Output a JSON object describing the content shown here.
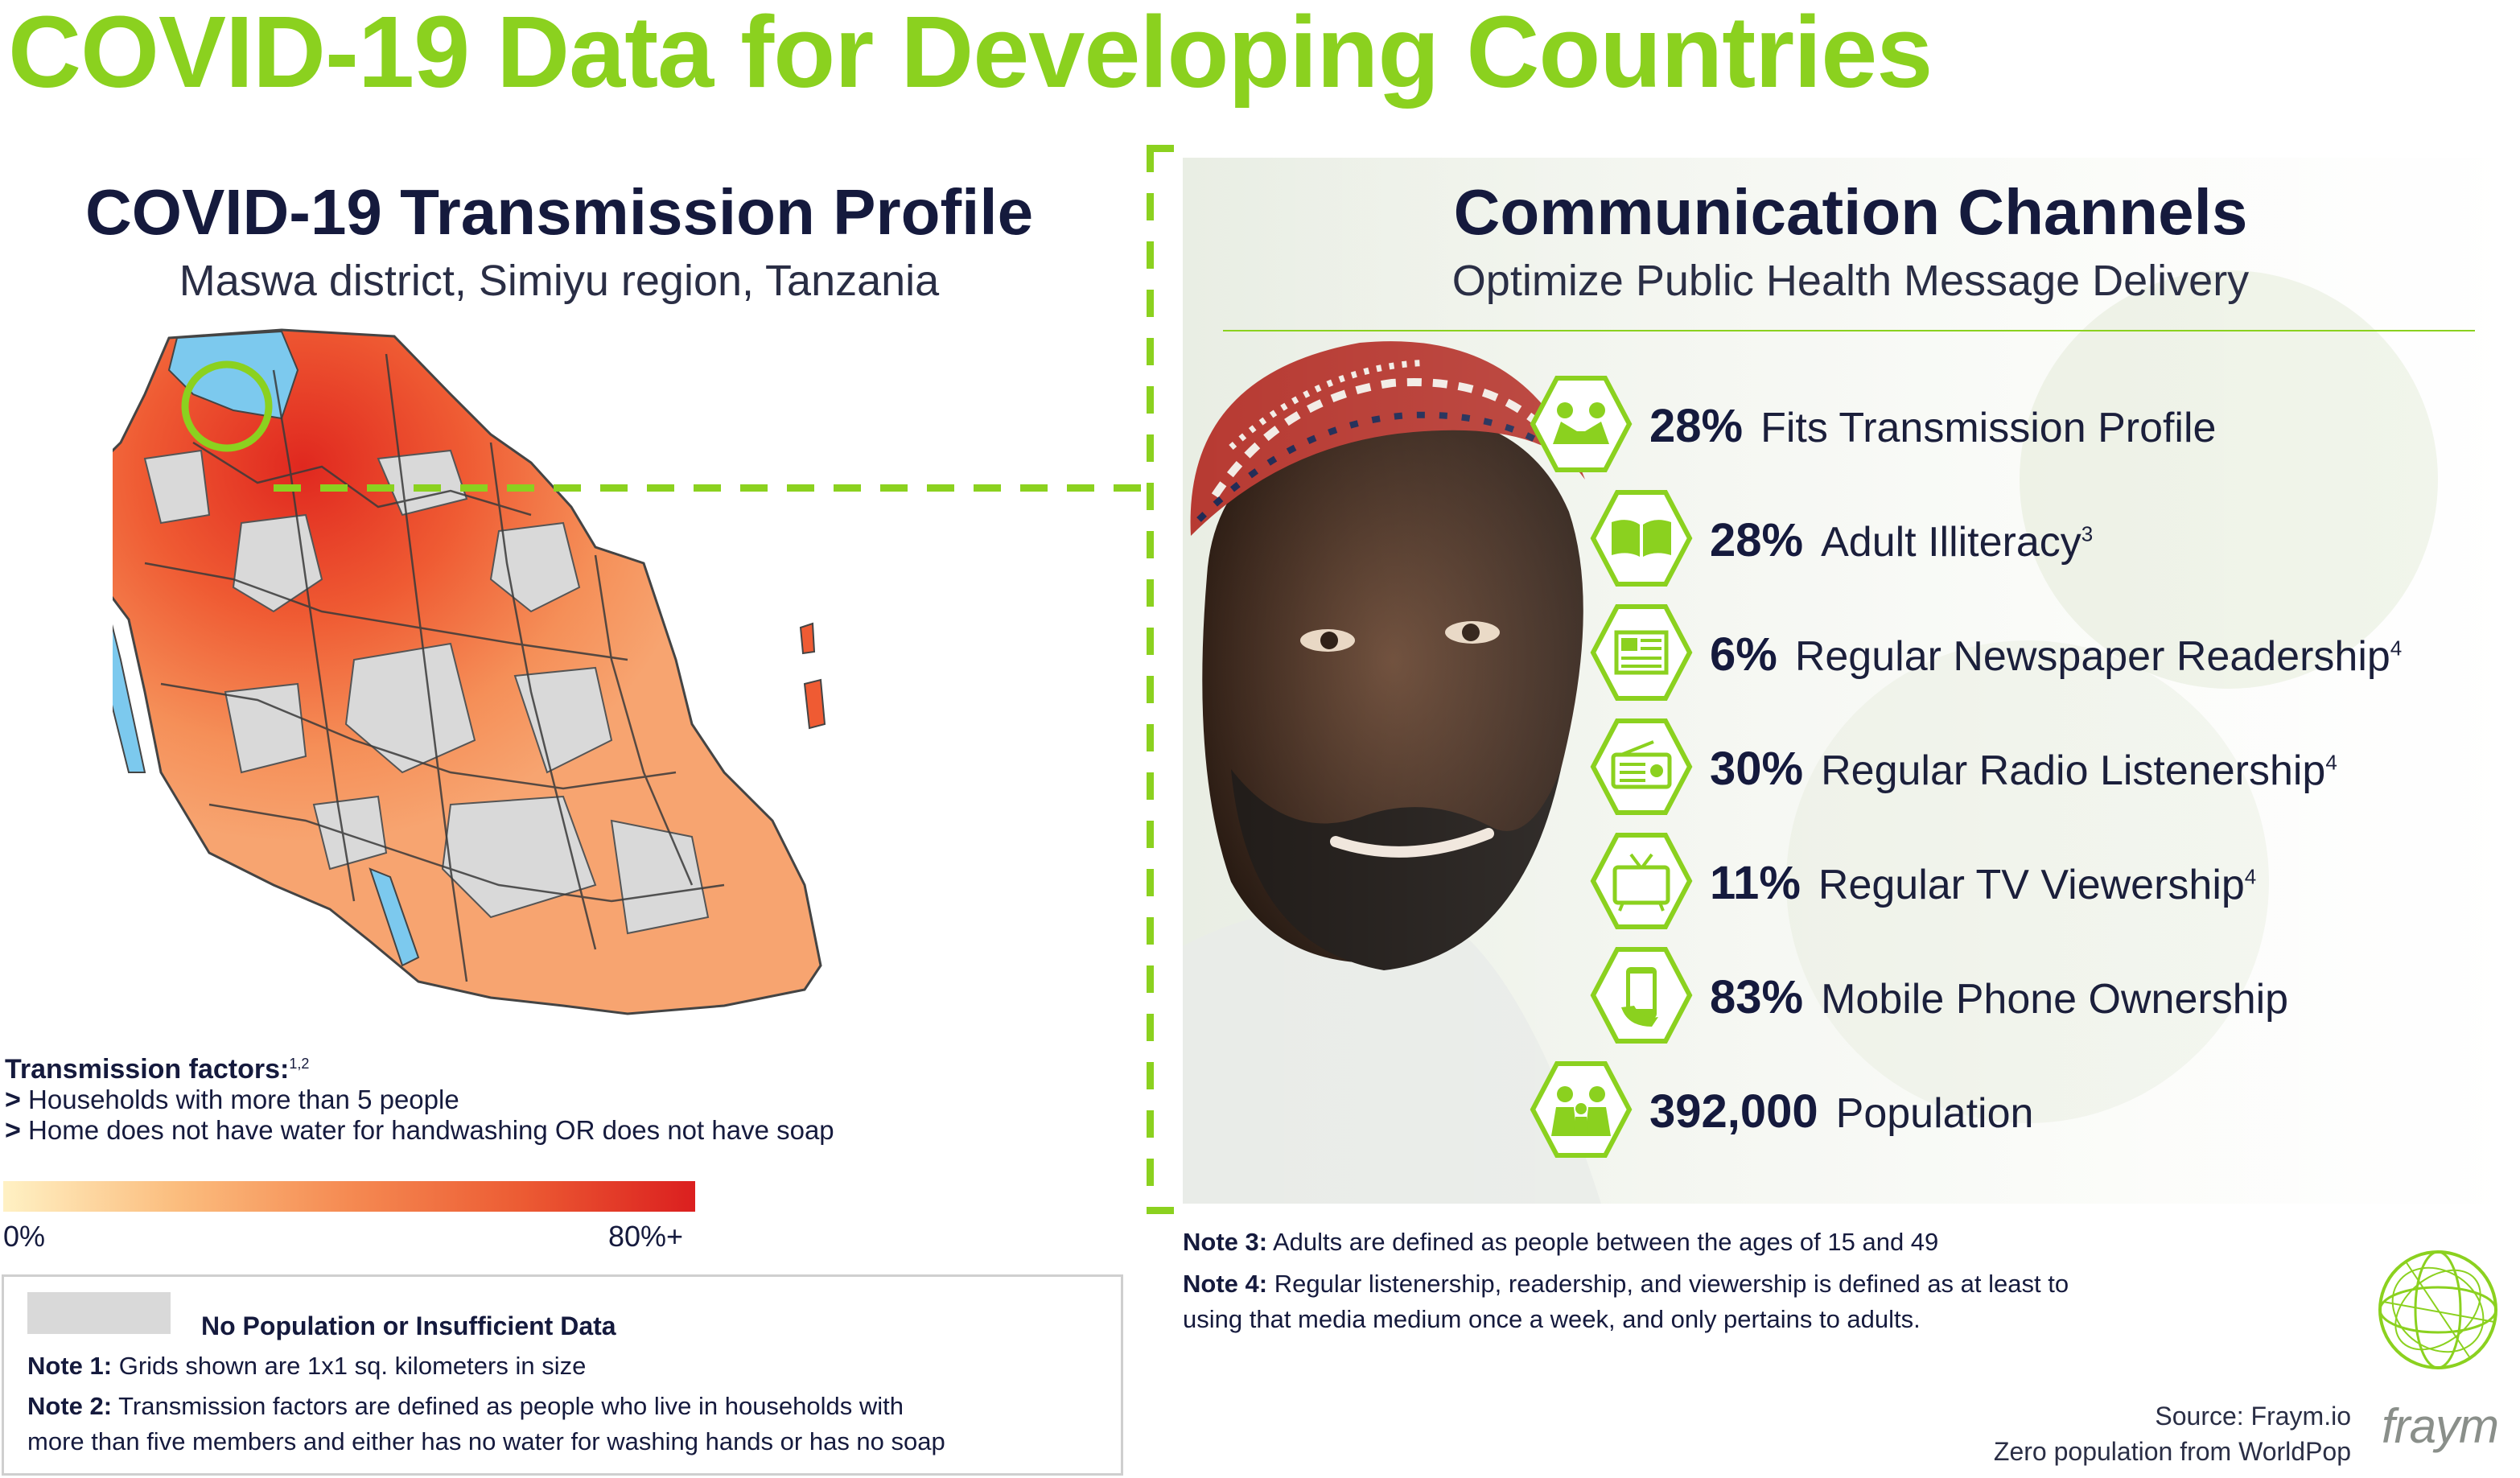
{
  "title": "COVID-19 Data for Developing Countries",
  "left_panel": {
    "title": "COVID-19 Transmission Profile",
    "subtitle": "Maswa district, Simiyu region, Tanzania",
    "factors_heading": "Transmission factors:",
    "factors_sup": "1,2",
    "factors": [
      "Households with more than 5 people",
      "Home does not have water for handwashing OR does not have soap"
    ],
    "factor_marker": ">",
    "legend": {
      "min_label": "0%",
      "max_label": "80%+"
    },
    "no_data_label": "No Population or Insufficient Data",
    "notes": [
      {
        "label": "Note 1:",
        "text": "Grids shown are 1x1 sq. kilometers in size"
      },
      {
        "label": "Note 2:",
        "text": "Transmission factors are defined as people who live in households with",
        "text2": "more than five members and either has no water for washing hands or has no soap"
      }
    ]
  },
  "right_panel": {
    "title": "Communication Channels",
    "subtitle": "Optimize Public Health Message Delivery",
    "channels": [
      {
        "value": "28%",
        "label": "Fits Transmission Profile",
        "sup": "",
        "icon": "people-meeting-icon"
      },
      {
        "value": "28%",
        "label": "Adult Illiteracy",
        "sup": "3",
        "icon": "book-icon"
      },
      {
        "value": "6%",
        "label": "Regular Newspaper Readership",
        "sup": "4",
        "icon": "newspaper-icon"
      },
      {
        "value": "30%",
        "label": "Regular Radio Listenership",
        "sup": "4",
        "icon": "radio-icon"
      },
      {
        "value": "11%",
        "label": "Regular TV Viewership",
        "sup": "4",
        "icon": "tv-icon"
      },
      {
        "value": "83%",
        "label": "Mobile Phone Ownership",
        "sup": "",
        "icon": "mobile-phone-icon"
      },
      {
        "value": "392,000",
        "label": "Population",
        "sup": "",
        "icon": "family-icon"
      }
    ],
    "notes": [
      {
        "label": "Note 3:",
        "text": "Adults are defined as people between the ages of 15 and 49"
      },
      {
        "label": "Note 4:",
        "text": "Regular listenership, readership, and viewership is defined as at least to",
        "text2": "using that media medium once a week, and only pertains to adults."
      }
    ]
  },
  "source": {
    "line1": "Source: Fraym.io",
    "line2": "Zero population from WorldPop"
  },
  "brand": {
    "name": "fraym"
  },
  "colors": {
    "accent": "#8bd11f",
    "navy": "#151a3d",
    "heat_low": "#fff1c4",
    "heat_high": "#db1f1f",
    "no_data": "#d9d9d9",
    "water": "#7cc9ee"
  }
}
